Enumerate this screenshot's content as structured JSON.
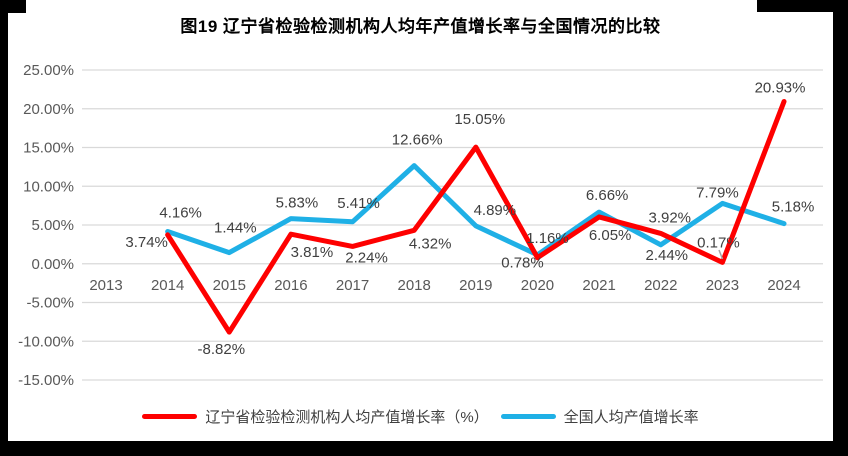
{
  "chart_data": {
    "type": "line",
    "title": "图19  辽宁省检验检测机构人均年产值增长率与全国情况的比较",
    "categories": [
      "2013",
      "2014",
      "2015",
      "2016",
      "2017",
      "2018",
      "2019",
      "2020",
      "2021",
      "2022",
      "2023",
      "2024"
    ],
    "series": [
      {
        "name": "辽宁省检验检测机构人均产值增长率（%）",
        "color": "#FE0000",
        "values": [
          null,
          3.74,
          -8.82,
          3.81,
          2.24,
          4.32,
          15.05,
          0.78,
          6.05,
          3.92,
          0.17,
          20.93
        ]
      },
      {
        "name": "全国人均产值增长率",
        "color": "#1FB0E6",
        "values": [
          null,
          4.16,
          1.44,
          5.83,
          5.41,
          12.66,
          4.89,
          1.16,
          6.66,
          2.44,
          7.79,
          5.18
        ]
      }
    ],
    "ylim": [
      -15,
      25
    ],
    "y_ticks": [
      25,
      20,
      15,
      10,
      5,
      0,
      -5,
      -10,
      -15
    ],
    "y_tick_format": "0.00%",
    "value_label_format": "0.00%",
    "grid": true,
    "legend_position": "bottom"
  },
  "colors": {
    "grid": "#D9D9D9",
    "axis_text": "#595959",
    "data_label": "#404040",
    "leader_line": "#A6A6A6",
    "frame": "#000000",
    "background": "#FFFFFF"
  }
}
